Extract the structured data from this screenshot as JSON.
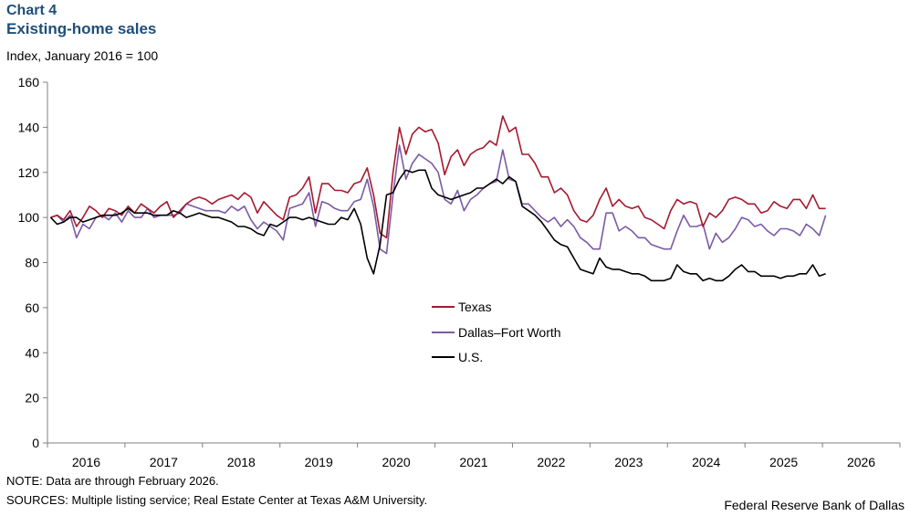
{
  "header": {
    "chart_number": "Chart 4",
    "title": "Existing-home sales",
    "units": "Index,  January 2016 = 100"
  },
  "footer": {
    "note": "NOTE: Data are through February 2026.",
    "sources": "SOURCES: Multiple listing service; Real Estate Center at Texas A&M University.",
    "credit": "Federal Reserve Bank of Dallas"
  },
  "colors": {
    "texas": "#a6192e",
    "dfw": "#7b5aa6",
    "us": "#000000"
  },
  "chart_data": {
    "type": "line",
    "title": "Existing-home sales",
    "ylabel": "Index,  January 2016 = 100",
    "xlabel": "",
    "ylim": [
      0,
      160
    ],
    "yticks": [
      0,
      20,
      40,
      60,
      80,
      100,
      120,
      140,
      160
    ],
    "x_start": "2016-01",
    "x_end": "2026-12",
    "year_labels": [
      "2016",
      "2017",
      "2018",
      "2019",
      "2020",
      "2021",
      "2022",
      "2023",
      "2024",
      "2025",
      "2026"
    ],
    "grid": false,
    "legend_position": "center",
    "series": [
      {
        "name": "Texas",
        "color": "#a6192e",
        "values": [
          100,
          101,
          99,
          103,
          96,
          100,
          105,
          103,
          100,
          104,
          103,
          101,
          105,
          102,
          106,
          104,
          102,
          105,
          107,
          100,
          103,
          106,
          108,
          109,
          108,
          106,
          108,
          109,
          110,
          108,
          111,
          109,
          102,
          107,
          104,
          101,
          99,
          109,
          110,
          113,
          118,
          102,
          115,
          115,
          112,
          112,
          111,
          115,
          116,
          122,
          110,
          93,
          91,
          120,
          140,
          128,
          137,
          140,
          138,
          139,
          133,
          119,
          127,
          130,
          123,
          128,
          130,
          131,
          134,
          132,
          145,
          138,
          140,
          128,
          128,
          124,
          118,
          118,
          111,
          113,
          110,
          103,
          99,
          98,
          101,
          108,
          113,
          105,
          108,
          105,
          104,
          105,
          100,
          99,
          97,
          95,
          103,
          108,
          106,
          107,
          106,
          96,
          102,
          100,
          103,
          108,
          109,
          108,
          106,
          106,
          102,
          103,
          107,
          105,
          104,
          108,
          108,
          104,
          110,
          104,
          104
        ]
      },
      {
        "name": "Dallas–Fort Worth",
        "color": "#7b5aa6",
        "values": [
          100,
          101,
          98,
          101,
          91,
          97,
          95,
          100,
          101,
          99,
          102,
          98,
          103,
          100,
          100,
          104,
          100,
          101,
          101,
          101,
          102,
          106,
          105,
          104,
          103,
          103,
          103,
          102,
          105,
          103,
          105,
          99,
          95,
          98,
          96,
          94,
          90,
          104,
          105,
          106,
          111,
          96,
          107,
          106,
          104,
          103,
          103,
          107,
          108,
          117,
          105,
          86,
          84,
          110,
          132,
          117,
          124,
          128,
          126,
          124,
          120,
          108,
          106,
          112,
          103,
          108,
          110,
          113,
          115,
          116,
          130,
          117,
          116,
          106,
          106,
          103,
          100,
          98,
          100,
          96,
          99,
          96,
          91,
          89,
          86,
          86,
          102,
          102,
          94,
          96,
          94,
          91,
          91,
          88,
          87,
          86,
          86,
          94,
          101,
          96,
          96,
          97,
          86,
          93,
          89,
          91,
          95,
          100,
          99,
          96,
          97,
          94,
          92,
          95,
          95,
          94,
          92,
          97,
          95,
          92,
          101
        ]
      },
      {
        "name": "U.S.",
        "color": "#000000",
        "values": [
          100,
          97,
          98,
          100,
          100,
          98,
          99,
          100,
          101,
          101,
          101,
          102,
          104,
          102,
          102,
          102,
          101,
          101,
          101,
          103,
          102,
          100,
          101,
          102,
          101,
          100,
          100,
          99,
          98,
          96,
          96,
          95,
          93,
          92,
          97,
          96,
          98,
          100,
          100,
          99,
          100,
          99,
          98,
          97,
          97,
          100,
          99,
          104,
          97,
          82,
          75,
          88,
          110,
          111,
          117,
          121,
          120,
          121,
          121,
          113,
          110,
          109,
          108,
          109,
          110,
          111,
          113,
          113,
          115,
          117,
          115,
          118,
          116,
          105,
          103,
          101,
          98,
          94,
          90,
          88,
          87,
          82,
          77,
          76,
          75,
          82,
          78,
          77,
          77,
          76,
          75,
          75,
          74,
          72,
          72,
          72,
          73,
          79,
          76,
          75,
          75,
          72,
          73,
          72,
          72,
          74,
          77,
          79,
          76,
          76,
          74,
          74,
          74,
          73,
          74,
          74,
          75,
          75,
          79,
          74,
          75
        ]
      }
    ]
  }
}
